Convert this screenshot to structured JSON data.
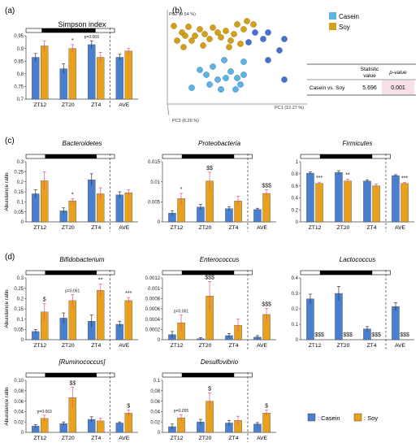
{
  "panel_labels": [
    "(a)",
    "(b)",
    "(c)",
    "(d)"
  ],
  "colors": {
    "casein": "#4a7fd0",
    "soy": "#e8a01e",
    "pca_casein": "#5ab4e6",
    "pca_soy": "#d4a017",
    "light_bar": "#ffffff",
    "dark_bar": "#000000",
    "err_pink": "#e0508a"
  },
  "categories": [
    "ZT12",
    "ZT20",
    "ZT4",
    "AVE"
  ],
  "legend": {
    "casein": ": Casein",
    "soy": ": Soy"
  },
  "pca": {
    "legend": [
      "Casein",
      "Soy"
    ],
    "axes": [
      "PC1 (12.27 %)",
      "PC2 (9.54 %)",
      "PC3 (6.26 %)"
    ],
    "stats": {
      "header_stat": "Statistic value",
      "header_p": "p-value",
      "row_label": "Casein vs. Soy",
      "statistic": "5.696",
      "p": "0.001"
    }
  },
  "chart_data": [
    {
      "type": "bar",
      "title": "Simpson index",
      "categories": [
        "ZT12",
        "ZT20",
        "ZT4",
        "AVE"
      ],
      "ylim": [
        0.7,
        0.95
      ],
      "yticks": [
        "0.7",
        "0.75",
        "0.8",
        "0.85",
        "0.9",
        "0.95"
      ],
      "ylabel": "",
      "series": [
        {
          "name": "Casein",
          "values": [
            0.865,
            0.82,
            0.915,
            0.865
          ],
          "err": [
            0.015,
            0.02,
            0.015,
            0.012
          ]
        },
        {
          "name": "Soy",
          "values": [
            0.91,
            0.9,
            0.865,
            0.89
          ],
          "err": [
            0.02,
            0.015,
            0.02,
            0.01
          ]
        }
      ],
      "annotations": [
        {
          "x": 1,
          "text": "*",
          "s": 1
        },
        {
          "x": 2,
          "text": "p=0.069",
          "s": 0
        }
      ]
    },
    {
      "type": "bar",
      "title": "Bacteroidetes",
      "categories": [
        "ZT12",
        "ZT20",
        "ZT4",
        "AVE"
      ],
      "ylim": [
        0,
        0.3
      ],
      "yticks": [
        "0",
        "0.05",
        "0.1",
        "0.15",
        "0.2",
        "0.25",
        "0.3"
      ],
      "ylabel": "Abundance ratio",
      "series": [
        {
          "name": "Casein",
          "values": [
            0.14,
            0.055,
            0.21,
            0.135
          ],
          "err": [
            0.02,
            0.015,
            0.03,
            0.015
          ]
        },
        {
          "name": "Soy",
          "values": [
            0.205,
            0.105,
            0.14,
            0.145
          ],
          "err": [
            0.045,
            0.01,
            0.03,
            0.015
          ]
        }
      ],
      "annotations": [
        {
          "x": 1,
          "text": "*",
          "s": 1
        }
      ]
    },
    {
      "type": "bar",
      "title": "Proteobacteria",
      "categories": [
        "ZT12",
        "ZT20",
        "ZT4",
        "AVE"
      ],
      "ylim": [
        0,
        0.015
      ],
      "yticks": [
        "0",
        "0.005",
        "0.01",
        "0.015"
      ],
      "ylabel": "",
      "series": [
        {
          "name": "Casein",
          "values": [
            0.0022,
            0.0037,
            0.0033,
            0.0031
          ],
          "err": [
            0.0006,
            0.0007,
            0.0005,
            0.0003
          ]
        },
        {
          "name": "Soy",
          "values": [
            0.0058,
            0.0102,
            0.0052,
            0.0071
          ],
          "err": [
            0.0013,
            0.0022,
            0.0012,
            0.0009
          ]
        }
      ],
      "annotations": [
        {
          "x": 0,
          "text": "*",
          "s": 1
        },
        {
          "x": 1,
          "text": "$$",
          "s": 1
        },
        {
          "x": 3,
          "text": "$$$",
          "s": 1
        }
      ]
    },
    {
      "type": "bar",
      "title": "Firmicutes",
      "categories": [
        "ZT12",
        "ZT20",
        "ZT4",
        "AVE"
      ],
      "ylim": [
        0,
        1
      ],
      "yticks": [
        "0",
        "0.2",
        "0.4",
        "0.6",
        "0.8",
        "1"
      ],
      "ylabel": "",
      "series": [
        {
          "name": "Casein",
          "values": [
            0.81,
            0.82,
            0.68,
            0.77
          ],
          "err": [
            0.02,
            0.03,
            0.02,
            0.015
          ]
        },
        {
          "name": "Soy",
          "values": [
            0.64,
            0.68,
            0.6,
            0.64
          ],
          "err": [
            0.02,
            0.03,
            0.03,
            0.015
          ]
        }
      ],
      "annotations": [
        {
          "x": 0,
          "text": "***",
          "s": 1
        },
        {
          "x": 1,
          "text": "**",
          "s": 1
        },
        {
          "x": 3,
          "text": "***",
          "s": 1
        }
      ]
    },
    {
      "type": "bar",
      "title": "Bifidobacterium",
      "categories": [
        "ZT12",
        "ZT20",
        "ZT4",
        "AVE"
      ],
      "ylim": [
        0,
        0.3
      ],
      "yticks": [
        "0",
        "0.05",
        "0.1",
        "0.15",
        "0.2",
        "0.25",
        "0.3"
      ],
      "ylabel": "Abundance ratio",
      "series": [
        {
          "name": "Casein",
          "values": [
            0.04,
            0.105,
            0.09,
            0.075
          ],
          "err": [
            0.01,
            0.025,
            0.03,
            0.015
          ]
        },
        {
          "name": "Soy",
          "values": [
            0.135,
            0.19,
            0.24,
            0.19
          ],
          "err": [
            0.04,
            0.03,
            0.03,
            0.015
          ]
        }
      ],
      "annotations": [
        {
          "x": 0,
          "text": "$",
          "s": 1
        },
        {
          "x": 1,
          "text": "p=0.061",
          "s": 1
        },
        {
          "x": 2,
          "text": "**",
          "s": 1
        },
        {
          "x": 3,
          "text": "***",
          "s": 1
        }
      ]
    },
    {
      "type": "bar",
      "title": "Enterococcus",
      "categories": [
        "ZT12",
        "ZT20",
        "ZT4",
        "AVE"
      ],
      "ylim": [
        0,
        0.0012
      ],
      "yticks": [
        "0",
        "0.0002",
        "0.0004",
        "0.0006",
        "0.0008",
        "0.001",
        "0.0012"
      ],
      "ylabel": "",
      "series": [
        {
          "name": "Casein",
          "values": [
            0.0001,
            2e-05,
            8e-05,
            5e-05
          ],
          "err": [
            6e-05,
            2e-05,
            4e-05,
            3e-05
          ]
        },
        {
          "name": "Soy",
          "values": [
            0.00033,
            0.00085,
            0.00028,
            0.00049
          ],
          "err": [
            0.00015,
            0.00028,
            0.00012,
            0.00012
          ]
        }
      ],
      "annotations": [
        {
          "x": 0,
          "text": "p=0.061",
          "s": 1
        },
        {
          "x": 1,
          "text": "$$$",
          "s": 1
        },
        {
          "x": 3,
          "text": "$$$",
          "s": 1
        }
      ]
    },
    {
      "type": "bar",
      "title": "Lactococcus",
      "categories": [
        "ZT12",
        "ZT20",
        "ZT4",
        "AVE"
      ],
      "ylim": [
        0,
        0.4
      ],
      "yticks": [
        "0",
        "0.1",
        "0.2",
        "0.3",
        "0.4"
      ],
      "ylabel": "",
      "series": [
        {
          "name": "Casein",
          "values": [
            0.265,
            0.3,
            0.07,
            0.215
          ],
          "err": [
            0.03,
            0.045,
            0.015,
            0.025
          ]
        },
        {
          "name": "Soy",
          "values": [
            0,
            0,
            0,
            0
          ],
          "err": [
            0,
            0,
            0,
            0
          ]
        }
      ],
      "annotations": [
        {
          "x": 0,
          "text": "$$$",
          "s": 1,
          "low": true
        },
        {
          "x": 1,
          "text": "$$$",
          "s": 1,
          "low": true
        },
        {
          "x": 2,
          "text": "$$$",
          "s": 1,
          "low": true
        },
        {
          "x": 3,
          "text": "$$$",
          "s": 1,
          "low": true
        }
      ]
    },
    {
      "type": "bar",
      "title": "[Ruminococcus]",
      "categories": [
        "ZT12",
        "ZT20",
        "ZT4",
        "AVE"
      ],
      "ylim": [
        0,
        0.1
      ],
      "yticks": [
        "0",
        "0.02",
        "0.04",
        "0.06",
        "0.08",
        "0.10"
      ],
      "ylabel": "Abundance ratio",
      "series": [
        {
          "name": "Casein",
          "values": [
            0.012,
            0.017,
            0.025,
            0.018
          ],
          "err": [
            0.003,
            0.003,
            0.005,
            0.002
          ]
        },
        {
          "name": "Soy",
          "values": [
            0.027,
            0.067,
            0.022,
            0.037
          ],
          "err": [
            0.006,
            0.02,
            0.005,
            0.006
          ]
        }
      ],
      "annotations": [
        {
          "x": 0,
          "text": "p=0.063",
          "s": 1
        },
        {
          "x": 1,
          "text": "$$",
          "s": 1
        },
        {
          "x": 3,
          "text": "$",
          "s": 1
        }
      ]
    },
    {
      "type": "bar",
      "title": "Desulfovibrio",
      "categories": [
        "ZT12",
        "ZT20",
        "ZT4",
        "AVE"
      ],
      "ylim": [
        0,
        0.1
      ],
      "yticks": [
        "0",
        "0.02",
        "0.04",
        "0.06",
        "0.08",
        "0.1"
      ],
      "ylabel": "",
      "series": [
        {
          "name": "Casein",
          "values": [
            0.011,
            0.02,
            0.018,
            0.016
          ],
          "err": [
            0.005,
            0.005,
            0.005,
            0.003
          ]
        },
        {
          "name": "Soy",
          "values": [
            0.028,
            0.06,
            0.023,
            0.037
          ],
          "err": [
            0.006,
            0.016,
            0.008,
            0.006
          ]
        }
      ],
      "annotations": [
        {
          "x": 0,
          "text": "p=0.055",
          "s": 1
        },
        {
          "x": 1,
          "text": "$",
          "s": 1
        },
        {
          "x": 3,
          "text": "$",
          "s": 1
        }
      ]
    }
  ]
}
